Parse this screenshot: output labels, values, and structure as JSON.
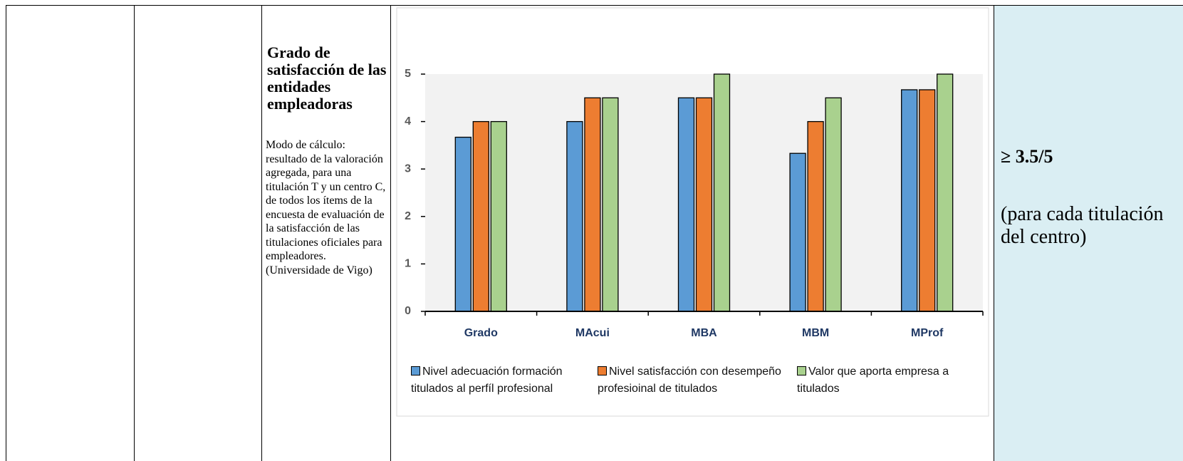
{
  "table": {
    "indicator": {
      "title": "Grado de satisfacción de las entidades empleadoras",
      "description": "Modo de cálculo: resultado de la valoración agregada, para una titulación T y un centro C, de todos los ítems de la encuesta de evaluación de la satisfacción de las titulaciones oficiales para empleadores. (Universidade de Vigo)"
    },
    "target": {
      "value": "≥ 3.5/5",
      "note": "(para cada titulación del centro)"
    }
  },
  "chart_data": {
    "type": "bar",
    "categories": [
      "Grado",
      "MAcui",
      "MBA",
      "MBM",
      "MProf"
    ],
    "series": [
      {
        "name": "Nivel adecuación formación titulados al perfíl profesional",
        "color": "#5b9bd5",
        "values": [
          3.67,
          4,
          4.5,
          3.33,
          4.67
        ]
      },
      {
        "name": "Nivel satisfacción con desempeño profesioinal de titulados",
        "color": "#ed7d31",
        "values": [
          4,
          4.5,
          4.5,
          4,
          4.67
        ]
      },
      {
        "name": "Valor que aporta empresa a titulados",
        "color": "#a9d18e",
        "values": [
          4,
          4.5,
          5,
          4.5,
          5
        ]
      }
    ],
    "ylim": [
      0,
      5
    ],
    "yticks": [
      0,
      1,
      2,
      3,
      4,
      5
    ],
    "grid": false
  }
}
